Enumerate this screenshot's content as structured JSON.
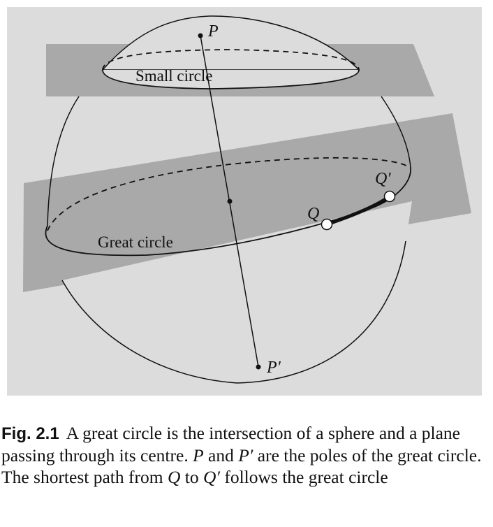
{
  "figure": {
    "labels": {
      "pole_top": "P",
      "pole_bottom": "P′",
      "small_circle": "Small circle",
      "great_circle": "Great circle",
      "point_q": "Q",
      "point_q_prime": "Q′"
    },
    "colors": {
      "panel_bg": "#dcdcdc",
      "plane_fill": "#a9a9a9",
      "sphere_fill": "#dcdcdc",
      "line": "#111111",
      "point_fill": "#ffffff"
    }
  },
  "caption": {
    "tag": "Fig. 2.1",
    "seg1": "A great circle is the intersection of a sphere and a plane passing through its centre. ",
    "p1": "P",
    "seg2": " and ",
    "p2": "P′",
    "seg3": " are the poles of the great circle. The shortest path from ",
    "q1": "Q",
    "seg4": " to ",
    "q2": "Q′",
    "seg5": " follows the great circle"
  }
}
